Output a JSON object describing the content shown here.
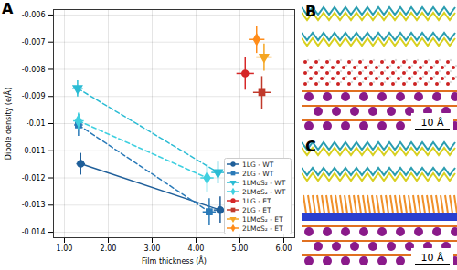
{
  "chart_data": {
    "type": "scatter",
    "title": "A",
    "x_label": "Film thickness (Å)",
    "y_label": "Dipole density (e/Å)",
    "xlim": [
      0.75,
      6.25
    ],
    "ylim": [
      -0.0142,
      -0.0058
    ],
    "xticks": [
      {
        "value": 1,
        "label": "1.00"
      },
      {
        "value": 2,
        "label": "2.00"
      },
      {
        "value": 3,
        "label": "3.00"
      },
      {
        "value": 4,
        "label": "4.00"
      },
      {
        "value": 5,
        "label": "5.00"
      },
      {
        "value": 6,
        "label": "6.00"
      }
    ],
    "yticks": [
      -0.014,
      -0.013,
      -0.012,
      -0.011,
      -0.01,
      -0.009,
      -0.008,
      -0.007,
      -0.006
    ],
    "grid": true,
    "legend": "bottom-right",
    "series": [
      {
        "name": "1LG - WT",
        "color": "#1f5f9a",
        "marker": "circle",
        "line_style": "solid",
        "x": [
          1.37,
          4.55
        ],
        "values": [
          -0.01148,
          -0.01318
        ],
        "x_error": [
          0.1,
          0.15
        ],
        "y_error": [
          0.0004,
          0.0005
        ]
      },
      {
        "name": "2LG - WT",
        "color": "#2a7ab8",
        "marker": "square",
        "line_style": "dashed",
        "x": [
          1.32,
          4.3
        ],
        "values": [
          -0.01005,
          -0.01325
        ],
        "x_error": [
          0.1,
          0.15
        ],
        "y_error": [
          0.0004,
          0.0005
        ]
      },
      {
        "name": "1LMoS₂ - WT",
        "color": "#2bbcd4",
        "marker": "triangle-down",
        "line_style": "dashed",
        "x": [
          1.3,
          4.5
        ],
        "values": [
          -0.0087,
          -0.0118
        ],
        "x_error": [
          0.12,
          0.15
        ],
        "y_error": [
          0.0003,
          0.0004
        ]
      },
      {
        "name": "2LMoS₂ - WT",
        "color": "#3fd0e0",
        "marker": "diamond",
        "line_style": "dashed",
        "x": [
          1.32,
          4.25
        ],
        "values": [
          -0.0099,
          -0.012
        ],
        "x_error": [
          0.12,
          0.15
        ],
        "y_error": [
          0.0003,
          0.0005
        ]
      },
      {
        "name": "1LG - ET",
        "color": "#d62728",
        "marker": "circle",
        "x": [
          5.12
        ],
        "values": [
          -0.00815
        ],
        "x_error": [
          0.2
        ],
        "y_error": [
          0.0006
        ]
      },
      {
        "name": "2LG - ET",
        "color": "#c0392b",
        "marker": "square",
        "x": [
          5.5
        ],
        "values": [
          -0.00885
        ],
        "x_error": [
          0.2
        ],
        "y_error": [
          0.0006
        ]
      },
      {
        "name": "1LMoS₂ - ET",
        "color": "#f5a623",
        "marker": "triangle-down",
        "x": [
          5.55
        ],
        "values": [
          -0.00755
        ],
        "x_error": [
          0.18
        ],
        "y_error": [
          0.0005
        ]
      },
      {
        "name": "2LMoS₂ - ET",
        "color": "#ff8c1a",
        "marker": "diamond",
        "x": [
          5.38
        ],
        "values": [
          -0.0069
        ],
        "x_error": [
          0.18
        ],
        "y_error": [
          0.0005
        ]
      }
    ]
  },
  "panels": [
    {
      "label": "B",
      "scale_bar": "10 Å"
    },
    {
      "label": "C",
      "scale_bar": "10 Å"
    }
  ]
}
